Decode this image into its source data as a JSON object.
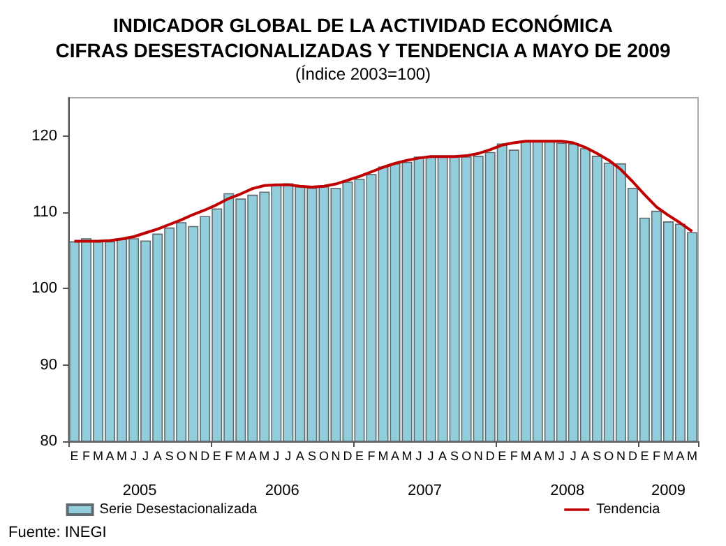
{
  "chart_data": {
    "type": "bar",
    "title": "INDICADOR GLOBAL DE LA ACTIVIDAD ECONÓMICA\nCIFRAS DESESTACIONALIZADAS Y TENDENCIA A MAYO DE 2009",
    "subtitle": "(Índice 2003=100)",
    "categories": [
      "E",
      "F",
      "M",
      "A",
      "M",
      "J",
      "J",
      "A",
      "S",
      "O",
      "N",
      "D",
      "E",
      "F",
      "M",
      "A",
      "M",
      "J",
      "J",
      "A",
      "S",
      "O",
      "N",
      "D",
      "E",
      "F",
      "M",
      "A",
      "M",
      "J",
      "J",
      "A",
      "S",
      "O",
      "N",
      "D",
      "E",
      "F",
      "M",
      "A",
      "M",
      "J",
      "J",
      "A",
      "S",
      "O",
      "N",
      "D",
      "E",
      "F",
      "M",
      "A",
      "M"
    ],
    "series": [
      {
        "name": "Serie Desestacionalizada",
        "color": "#92cddc",
        "values": [
          106.2,
          106.6,
          106.2,
          106.2,
          106.5,
          106.6,
          106.3,
          107.2,
          108.0,
          108.7,
          108.2,
          109.5,
          110.5,
          112.5,
          111.8,
          112.3,
          112.7,
          113.7,
          113.8,
          113.4,
          113.2,
          113.4,
          113.2,
          114.0,
          114.4,
          115.0,
          116.0,
          116.4,
          116.6,
          117.3,
          117.3,
          117.3,
          117.3,
          117.3,
          117.4,
          117.9,
          119.0,
          118.2,
          119.3,
          119.3,
          119.3,
          119.1,
          119.0,
          118.4,
          117.4,
          116.5,
          116.4,
          113.2,
          109.3,
          110.2,
          108.8,
          108.5,
          107.4
        ]
      },
      {
        "name": "Tendencia",
        "type": "line",
        "color": "#c00000",
        "values": [
          106.2,
          106.2,
          106.2,
          106.3,
          106.5,
          106.8,
          107.3,
          107.8,
          108.4,
          109.0,
          109.7,
          110.3,
          111.0,
          111.8,
          112.4,
          113.1,
          113.5,
          113.6,
          113.6,
          113.4,
          113.3,
          113.4,
          113.7,
          114.2,
          114.7,
          115.3,
          115.9,
          116.4,
          116.8,
          117.1,
          117.3,
          117.3,
          117.3,
          117.4,
          117.7,
          118.2,
          118.8,
          119.1,
          119.3,
          119.3,
          119.3,
          119.3,
          119.1,
          118.5,
          117.7,
          116.8,
          115.6,
          114.0,
          112.3,
          110.7,
          109.6,
          108.6,
          107.5
        ]
      }
    ],
    "ylim": [
      80,
      125
    ],
    "yticks": [
      80,
      90,
      100,
      110,
      120
    ],
    "legend": "bottom",
    "marker": "none",
    "line_style": "solid",
    "annotations": [
      "2005",
      "2006",
      "2007",
      "2008",
      "2009",
      "Fuente: INEGI"
    ]
  }
}
